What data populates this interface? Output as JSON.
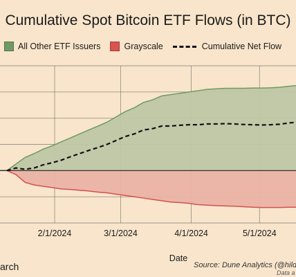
{
  "title": "Cumulative Spot Bitcoin ETF Flows (in BTC)",
  "legend": {
    "other": "All Other ETF Issuers",
    "grayscale": "Grayscale",
    "net": "Cumulative Net Flow"
  },
  "colors": {
    "background": "#f8e5cb",
    "other_fill": "#bfc7a5",
    "other_line": "#6d9a5f",
    "grayscale_fill": "#eab3a4",
    "grayscale_line": "#d54f4f",
    "net_line": "#111111",
    "grid": "#555555"
  },
  "xlabel": "Date",
  "source": "Source: Dune Analytics (@hild",
  "source_note": "Data a",
  "credit": "arch",
  "chart_data": {
    "type": "area",
    "title": "Cumulative Spot Bitcoin ETF Flows (in BTC)",
    "xlabel": "Date",
    "ylabel": "",
    "x_ticks": [
      "2/1/2024",
      "3/1/2024",
      "4/1/2024",
      "5/1/2024"
    ],
    "y_ticks": [
      -200000,
      -100000,
      0,
      100000,
      200000,
      300000,
      400000
    ],
    "y_range": [
      -200000,
      400000
    ],
    "x": [
      "2024-01-11",
      "2024-01-15",
      "2024-01-19",
      "2024-01-23",
      "2024-01-27",
      "2024-01-31",
      "2024-02-04",
      "2024-02-08",
      "2024-02-12",
      "2024-02-16",
      "2024-02-20",
      "2024-02-24",
      "2024-02-28",
      "2024-03-03",
      "2024-03-07",
      "2024-03-11",
      "2024-03-15",
      "2024-03-19",
      "2024-03-23",
      "2024-03-27",
      "2024-03-31",
      "2024-04-04",
      "2024-04-08",
      "2024-04-12",
      "2024-04-16",
      "2024-04-20",
      "2024-04-24",
      "2024-04-28",
      "2024-05-02",
      "2024-05-06",
      "2024-05-10",
      "2024-05-14",
      "2024-05-18"
    ],
    "series": [
      {
        "name": "All Other ETF Issuers",
        "type": "area",
        "values": [
          0,
          25000,
          50000,
          65000,
          82000,
          95000,
          110000,
          125000,
          140000,
          155000,
          170000,
          185000,
          205000,
          225000,
          240000,
          260000,
          270000,
          285000,
          290000,
          295000,
          300000,
          305000,
          310000,
          312000,
          314000,
          314000,
          314000,
          315000,
          315000,
          316000,
          318000,
          322000,
          325000
        ]
      },
      {
        "name": "Grayscale",
        "type": "area",
        "values": [
          0,
          -15000,
          -45000,
          -55000,
          -60000,
          -65000,
          -70000,
          -72000,
          -75000,
          -78000,
          -82000,
          -85000,
          -90000,
          -95000,
          -100000,
          -105000,
          -110000,
          -115000,
          -120000,
          -122000,
          -125000,
          -130000,
          -132000,
          -134000,
          -135000,
          -136000,
          -138000,
          -140000,
          -141000,
          -141000,
          -141000,
          -140000,
          -140000
        ]
      },
      {
        "name": "Cumulative Net Flow",
        "type": "line",
        "dashed": true,
        "values": [
          0,
          10000,
          5000,
          10000,
          22000,
          30000,
          40000,
          53000,
          65000,
          77000,
          88000,
          100000,
          115000,
          130000,
          140000,
          155000,
          160000,
          170000,
          170000,
          173000,
          175000,
          175000,
          178000,
          178000,
          179000,
          178000,
          176000,
          175000,
          174000,
          175000,
          177000,
          182000,
          185000
        ]
      }
    ],
    "grid": true,
    "legend_position": "top"
  }
}
